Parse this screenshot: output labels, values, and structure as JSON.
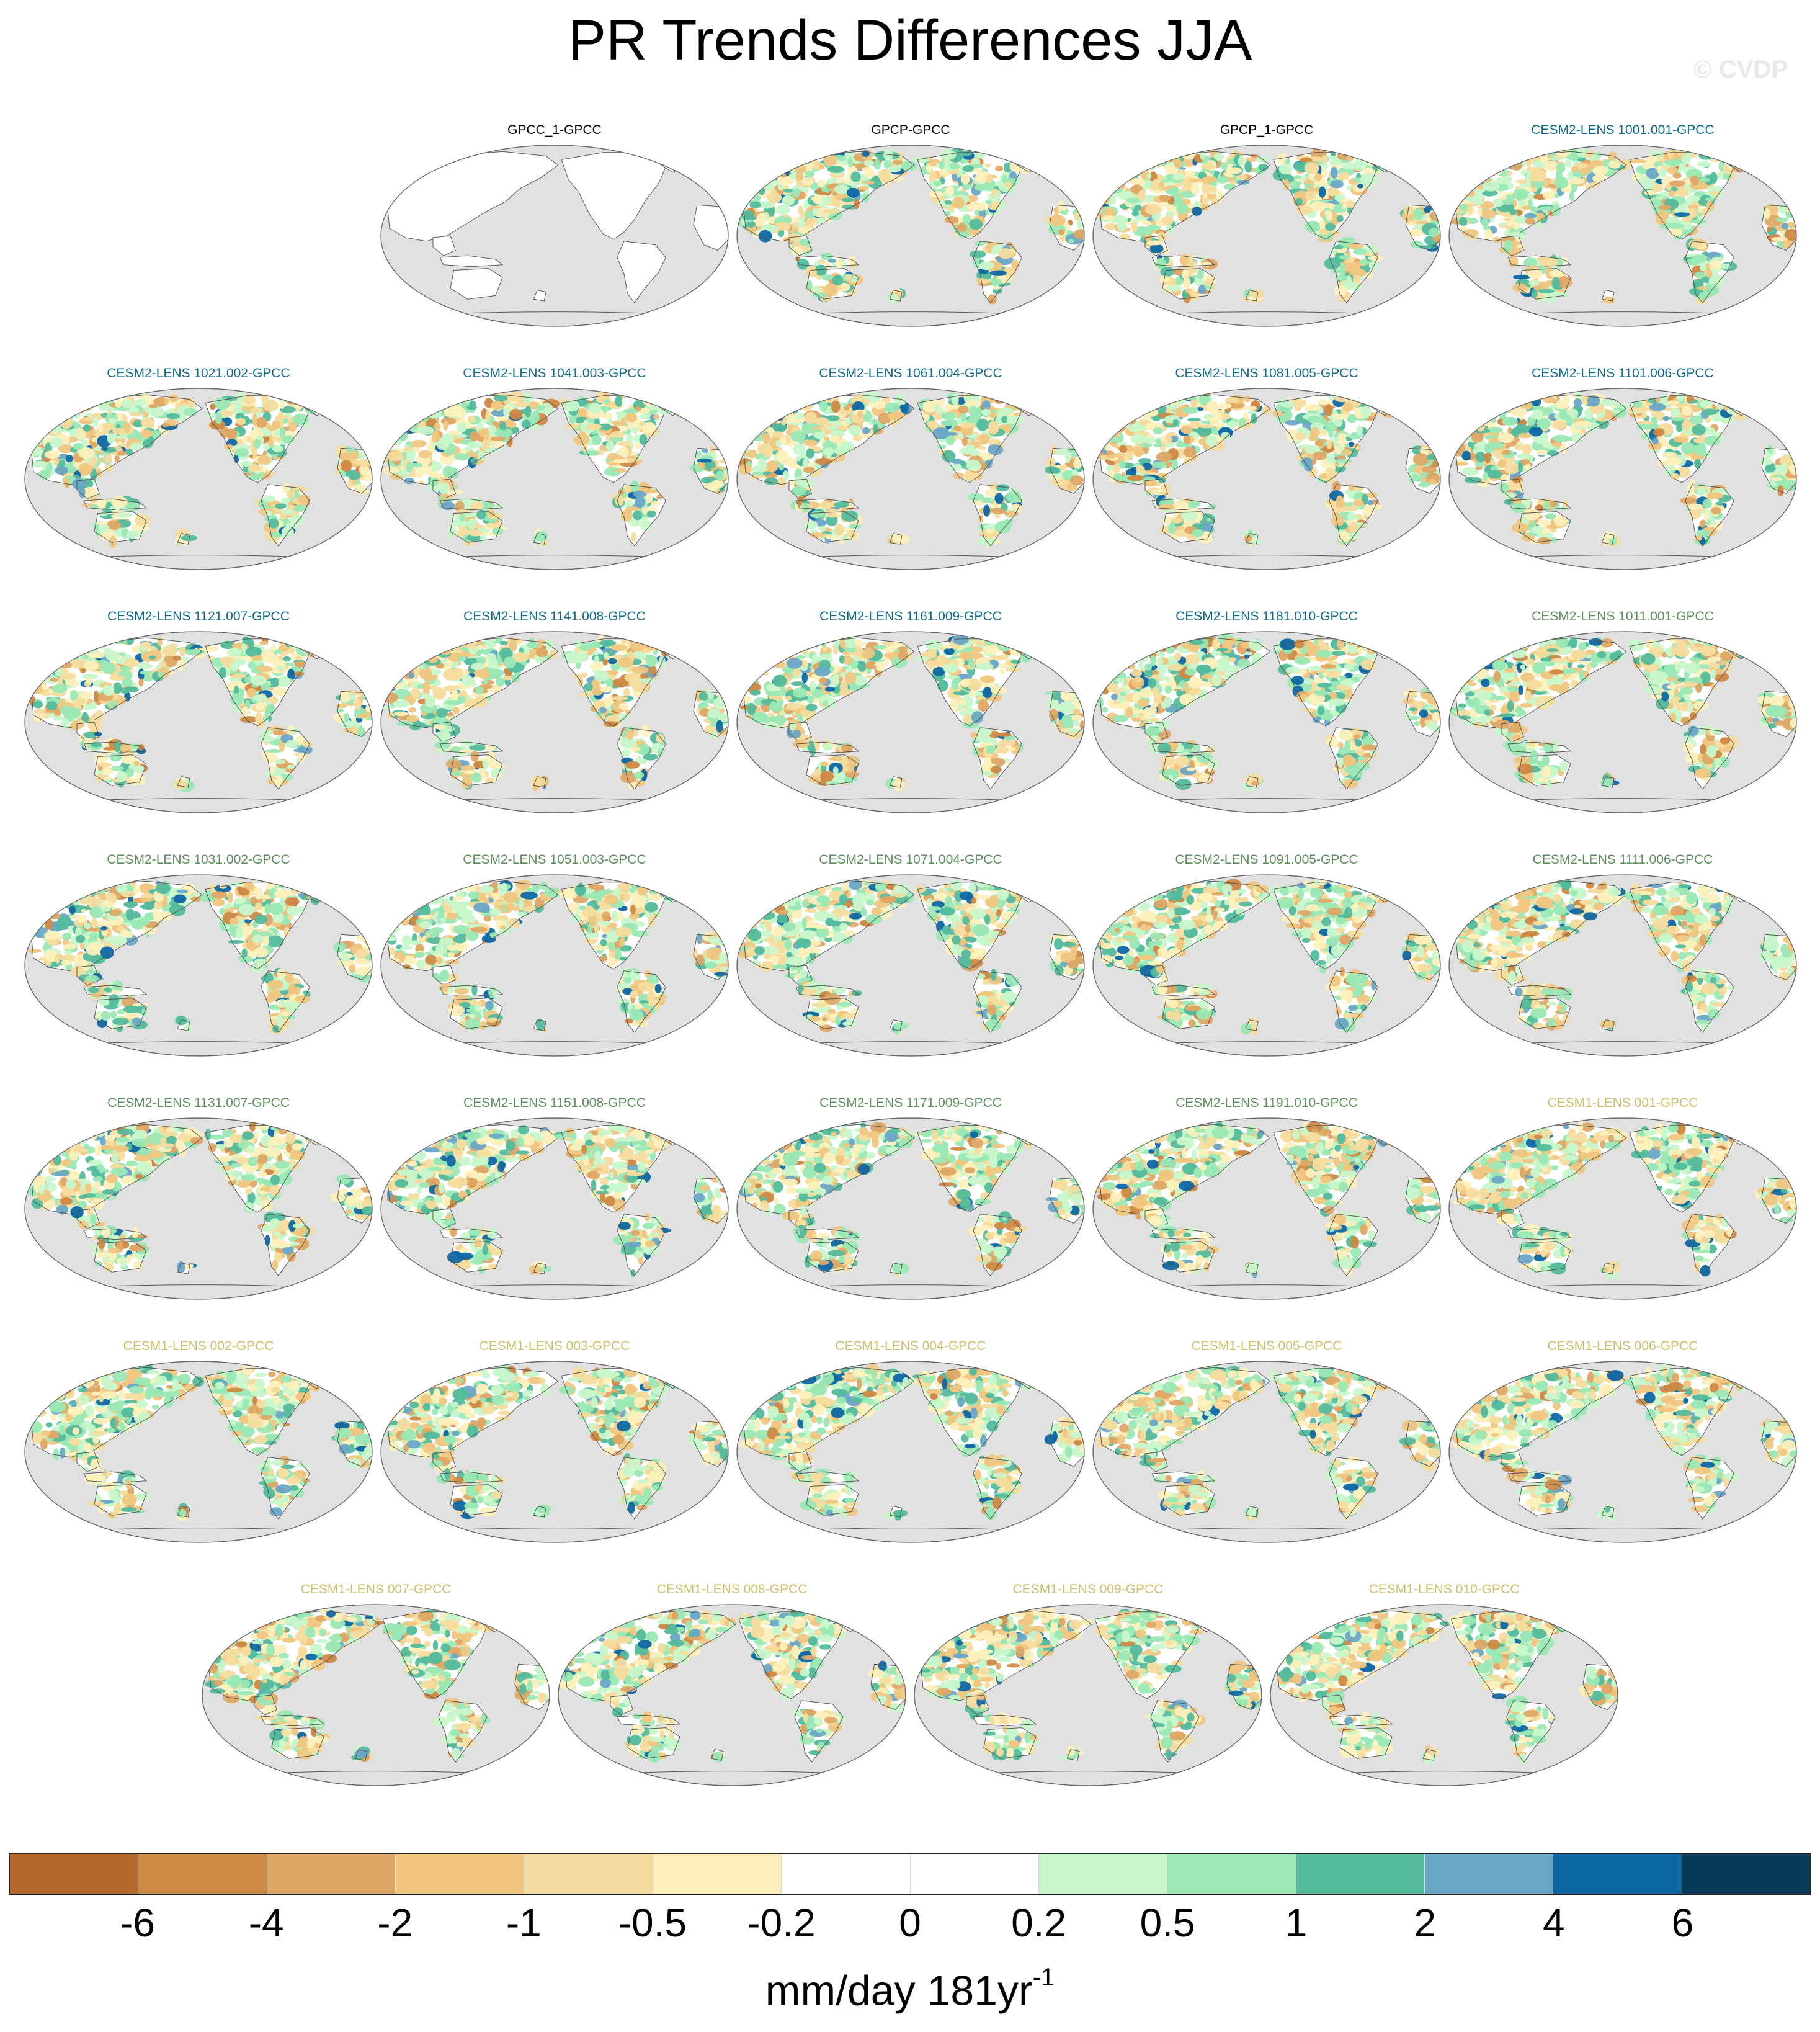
{
  "title": "PR Trends Differences JJA",
  "credit": "© CVDP",
  "colors": {
    "ocean": "#e1e1e1",
    "land_outline": "#555555",
    "title_obs": "#000000",
    "title_cesm2_a": "#0e6a8a",
    "title_cesm2_b": "#5e8f5e",
    "title_cesm1": "#cdbf6a"
  },
  "panel_titles": [
    {
      "label": "GPCC_1-GPCC",
      "group": "obs"
    },
    {
      "label": "GPCP-GPCC",
      "group": "obs"
    },
    {
      "label": "GPCP_1-GPCC",
      "group": "obs"
    },
    {
      "label": "CESM2-LENS 1001.001-GPCC",
      "group": "cesm2_a"
    },
    {
      "label": "CESM2-LENS 1021.002-GPCC",
      "group": "cesm2_a"
    },
    {
      "label": "CESM2-LENS 1041.003-GPCC",
      "group": "cesm2_a"
    },
    {
      "label": "CESM2-LENS 1061.004-GPCC",
      "group": "cesm2_a"
    },
    {
      "label": "CESM2-LENS 1081.005-GPCC",
      "group": "cesm2_a"
    },
    {
      "label": "CESM2-LENS 1101.006-GPCC",
      "group": "cesm2_a"
    },
    {
      "label": "CESM2-LENS 1121.007-GPCC",
      "group": "cesm2_a"
    },
    {
      "label": "CESM2-LENS 1141.008-GPCC",
      "group": "cesm2_a"
    },
    {
      "label": "CESM2-LENS 1161.009-GPCC",
      "group": "cesm2_a"
    },
    {
      "label": "CESM2-LENS 1181.010-GPCC",
      "group": "cesm2_a"
    },
    {
      "label": "CESM2-LENS 1011.001-GPCC",
      "group": "cesm2_b"
    },
    {
      "label": "CESM2-LENS 1031.002-GPCC",
      "group": "cesm2_b"
    },
    {
      "label": "CESM2-LENS 1051.003-GPCC",
      "group": "cesm2_b"
    },
    {
      "label": "CESM2-LENS 1071.004-GPCC",
      "group": "cesm2_b"
    },
    {
      "label": "CESM2-LENS 1091.005-GPCC",
      "group": "cesm2_b"
    },
    {
      "label": "CESM2-LENS 1111.006-GPCC",
      "group": "cesm2_b"
    },
    {
      "label": "CESM2-LENS 1131.007-GPCC",
      "group": "cesm2_b"
    },
    {
      "label": "CESM2-LENS 1151.008-GPCC",
      "group": "cesm2_b"
    },
    {
      "label": "CESM2-LENS 1171.009-GPCC",
      "group": "cesm2_b"
    },
    {
      "label": "CESM2-LENS 1191.010-GPCC",
      "group": "cesm2_b"
    },
    {
      "label": "CESM1-LENS 001-GPCC",
      "group": "cesm1"
    },
    {
      "label": "CESM1-LENS 002-GPCC",
      "group": "cesm1"
    },
    {
      "label": "CESM1-LENS 003-GPCC",
      "group": "cesm1"
    },
    {
      "label": "CESM1-LENS 004-GPCC",
      "group": "cesm1"
    },
    {
      "label": "CESM1-LENS 005-GPCC",
      "group": "cesm1"
    },
    {
      "label": "CESM1-LENS 006-GPCC",
      "group": "cesm1"
    },
    {
      "label": "CESM1-LENS 007-GPCC",
      "group": "cesm1"
    },
    {
      "label": "CESM1-LENS 008-GPCC",
      "group": "cesm1"
    },
    {
      "label": "CESM1-LENS 009-GPCC",
      "group": "cesm1"
    },
    {
      "label": "CESM1-LENS 010-GPCC",
      "group": "cesm1"
    }
  ],
  "colorbar": {
    "colors": [
      "#b5692c",
      "#cd8843",
      "#dea665",
      "#f0c67f",
      "#f5dc9e",
      "#fdf0bc",
      "#ffffff",
      "#ffffff",
      "#c8f7cb",
      "#9ae8b5",
      "#53bb9c",
      "#6aa6c6",
      "#0d67a3",
      "#0a3a5a"
    ],
    "labels": [
      "-6",
      "-4",
      "-2",
      "-1",
      "-0.5",
      "-0.2",
      "0",
      "0.2",
      "0.5",
      "1",
      "2",
      "4",
      "6"
    ]
  },
  "units": {
    "text": "mm/day 181yr",
    "superscript": "-1"
  }
}
